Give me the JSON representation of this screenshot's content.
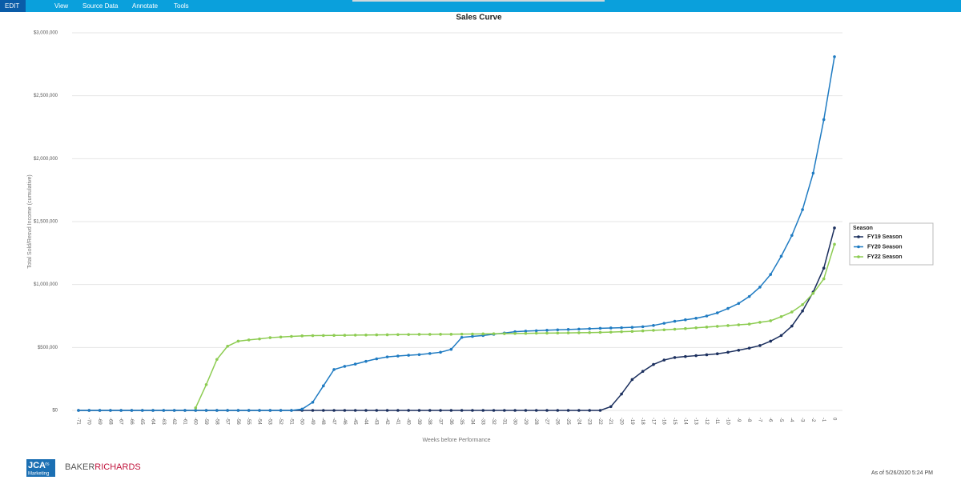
{
  "menu": {
    "items": [
      "EDIT",
      "View",
      "Source Data",
      "Annotate",
      "Tools"
    ]
  },
  "chart_data": {
    "type": "line",
    "title": "Sales Curve",
    "x_label": "Weeks before Performance",
    "y_label": "Total Sold/Resvd Income (cumulative)",
    "categories": [
      -71,
      -70,
      -69,
      -68,
      -67,
      -66,
      -65,
      -64,
      -63,
      -62,
      -61,
      -60,
      -59,
      -58,
      -57,
      -56,
      -55,
      -54,
      -53,
      -52,
      -51,
      -50,
      -49,
      -48,
      -47,
      -46,
      -45,
      -44,
      -43,
      -42,
      -41,
      -40,
      -39,
      -38,
      -37,
      -36,
      -35,
      -34,
      -33,
      -32,
      -31,
      -30,
      -29,
      -28,
      -27,
      -26,
      -25,
      -24,
      -23,
      -22,
      -21,
      -20,
      -19,
      -18,
      -17,
      -16,
      -15,
      -14,
      -13,
      -12,
      -11,
      -10,
      -9,
      -8,
      -7,
      -6,
      -5,
      -4,
      -3,
      -2,
      -1,
      0
    ],
    "ylim": [
      0,
      3000000
    ],
    "yticks": [
      {
        "value": 0,
        "label": "$0"
      },
      {
        "value": 500000,
        "label": "$500,000"
      },
      {
        "value": 1000000,
        "label": "$1,000,000"
      },
      {
        "value": 1500000,
        "label": "$1,500,000"
      },
      {
        "value": 2000000,
        "label": "$2,000,000"
      },
      {
        "value": 2500000,
        "label": "$2,500,000"
      },
      {
        "value": 3000000,
        "label": "$3,000,000"
      }
    ],
    "grid": true,
    "legend_title": "Season",
    "legend": "right",
    "series": [
      {
        "name": "FY19 Season",
        "color": "#1b2f5e",
        "values": [
          0,
          0,
          0,
          0,
          0,
          0,
          0,
          0,
          0,
          0,
          0,
          0,
          0,
          0,
          0,
          0,
          0,
          0,
          0,
          0,
          0,
          0,
          0,
          0,
          0,
          0,
          0,
          0,
          0,
          0,
          0,
          0,
          0,
          0,
          0,
          0,
          0,
          0,
          0,
          0,
          0,
          0,
          0,
          0,
          0,
          0,
          0,
          0,
          0,
          0,
          30000,
          130000,
          245000,
          310000,
          365000,
          400000,
          420000,
          428000,
          435000,
          442000,
          450000,
          462000,
          478000,
          495000,
          515000,
          550000,
          595000,
          670000,
          790000,
          940000,
          1130000,
          1450000
        ]
      },
      {
        "name": "FY20 Season",
        "color": "#1f7bc2",
        "values": [
          0,
          0,
          0,
          0,
          0,
          0,
          0,
          0,
          0,
          0,
          0,
          0,
          0,
          0,
          0,
          0,
          0,
          0,
          0,
          0,
          0,
          10000,
          65000,
          195000,
          325000,
          350000,
          368000,
          390000,
          410000,
          425000,
          432000,
          438000,
          443000,
          452000,
          462000,
          485000,
          580000,
          588000,
          595000,
          605000,
          615000,
          625000,
          630000,
          633000,
          637000,
          640000,
          643000,
          646000,
          649000,
          652000,
          655000,
          657000,
          660000,
          665000,
          675000,
          692000,
          708000,
          720000,
          732000,
          750000,
          775000,
          810000,
          850000,
          905000,
          980000,
          1080000,
          1225000,
          1390000,
          1595000,
          1885000,
          2310000,
          2810000
        ]
      },
      {
        "name": "FY22 Season",
        "color": "#8dcc52",
        "values": [
          null,
          null,
          null,
          null,
          null,
          null,
          null,
          null,
          null,
          null,
          null,
          20000,
          205000,
          405000,
          510000,
          550000,
          560000,
          568000,
          578000,
          583000,
          588000,
          592000,
          594000,
          595000,
          596000,
          597000,
          598000,
          599000,
          600000,
          601000,
          602000,
          603000,
          604000,
          604000,
          605000,
          605000,
          606000,
          607000,
          608000,
          609000,
          610000,
          611000,
          612000,
          613000,
          614000,
          615000,
          616000,
          617000,
          618000,
          620000,
          622000,
          625000,
          628000,
          632000,
          636000,
          640000,
          645000,
          650000,
          656000,
          662000,
          668000,
          674000,
          680000,
          686000,
          700000,
          712000,
          745000,
          782000,
          840000,
          930000,
          1045000,
          1320000
        ]
      }
    ]
  },
  "footer": {
    "logo_main": "JCA",
    "logo_sup": "rts",
    "logo_sub": "Marketing",
    "brand_a": "BAKER",
    "brand_b": "RICHARDS",
    "timestamp": "As of 5/26/2020 5:24 PM"
  }
}
